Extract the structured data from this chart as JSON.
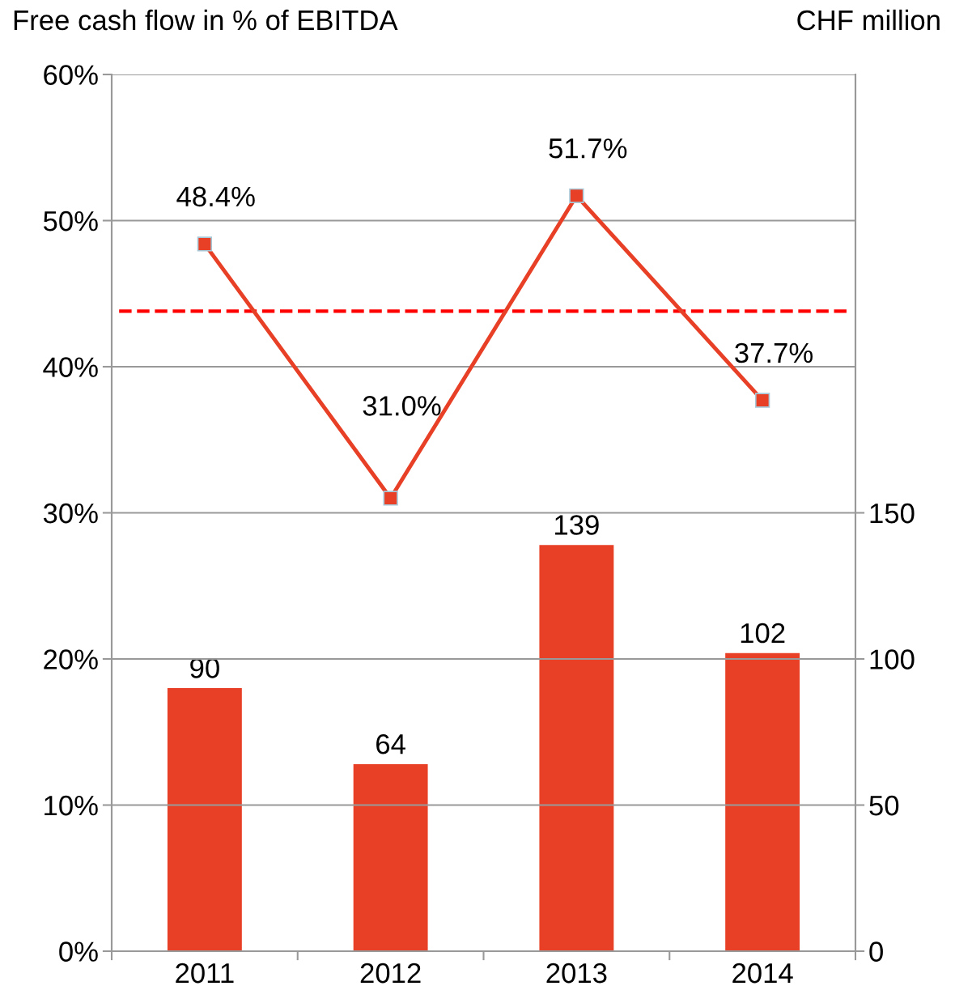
{
  "chart_data": {
    "type": "bar",
    "ylabel": "Free cash flow in % of EBITDA",
    "y2label": "CHF million",
    "categories": [
      "2011",
      "2012",
      "2013",
      "2014"
    ],
    "series": [
      {
        "axis": "y2",
        "color": "#e84026",
        "values": [
          90,
          64,
          139,
          102
        ],
        "value_labels": [
          "90",
          "64",
          "139",
          "102"
        ]
      },
      {
        "type": "line",
        "axis": "y",
        "color": "#e84026",
        "marker": "square",
        "line_style": "solid",
        "values": [
          48.4,
          31.0,
          51.7,
          37.7
        ],
        "value_labels": [
          "48.4%",
          "31.0%",
          "51.7%",
          "37.7%"
        ]
      }
    ],
    "ylim": [
      0,
      60
    ],
    "yticks": [
      {
        "value": 0,
        "label": "0%"
      },
      {
        "value": 10,
        "label": "10%"
      },
      {
        "value": 20,
        "label": "20%"
      },
      {
        "value": 30,
        "label": "30%"
      },
      {
        "value": 40,
        "label": "40%"
      },
      {
        "value": 50,
        "label": "50%"
      },
      {
        "value": 60,
        "label": "60%"
      }
    ],
    "y2lim": [
      0,
      300
    ],
    "y2ticks": [
      0,
      50,
      100,
      150
    ],
    "ref_lines": [
      {
        "axis": "y",
        "value": 43.8,
        "color": "#ff0000",
        "line_style": "dashed"
      }
    ],
    "grid": "y"
  }
}
